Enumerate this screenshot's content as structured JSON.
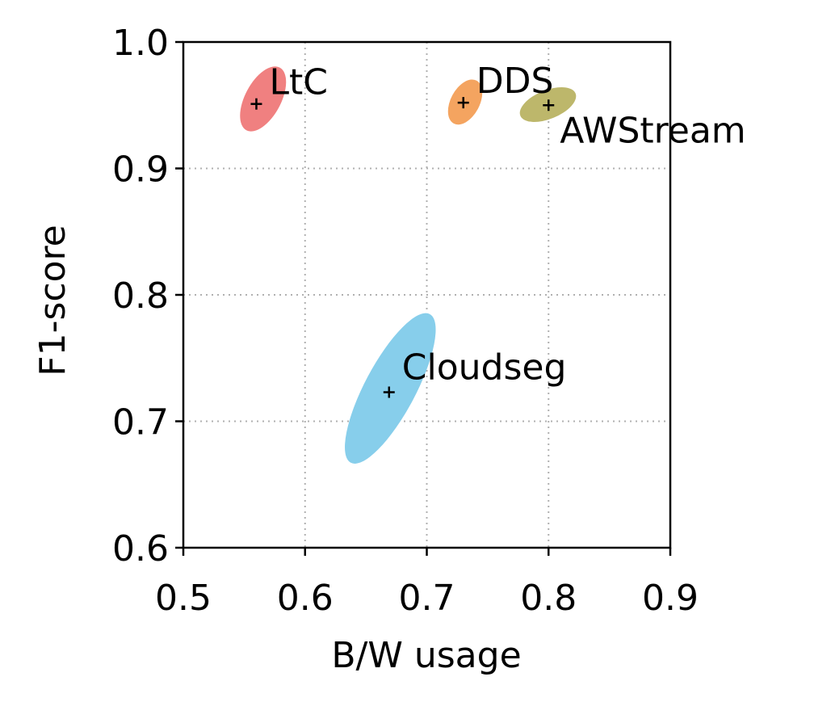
{
  "chart_data": {
    "type": "scatter",
    "xlabel": "B/W usage",
    "ylabel": "F1-score",
    "xlim": [
      0.5,
      0.9
    ],
    "ylim": [
      0.6,
      1.0
    ],
    "xticks": [
      "0.5",
      "0.6",
      "0.7",
      "0.8",
      "0.9"
    ],
    "yticks": [
      "0.6",
      "0.7",
      "0.8",
      "0.9",
      "1.0"
    ],
    "grid": true,
    "series": [
      {
        "name": "LtC",
        "x": 0.56,
        "y": 0.951,
        "x_spread": [
          0.545,
          0.586
        ],
        "y_spread": [
          0.928,
          0.982
        ],
        "color": "#f08080"
      },
      {
        "name": "DDS",
        "x": 0.73,
        "y": 0.952,
        "x_spread": [
          0.715,
          0.748
        ],
        "y_spread": [
          0.934,
          0.971
        ],
        "color": "#f4a460"
      },
      {
        "name": "AWStream",
        "x": 0.8,
        "y": 0.95,
        "x_spread": [
          0.776,
          0.823
        ],
        "y_spread": [
          0.937,
          0.964
        ],
        "color": "#bdb76b"
      },
      {
        "name": "Cloudseg",
        "x": 0.669,
        "y": 0.723,
        "x_spread": [
          0.641,
          0.699
        ],
        "y_spread": [
          0.662,
          0.79
        ],
        "color": "#87ceeb"
      }
    ]
  }
}
